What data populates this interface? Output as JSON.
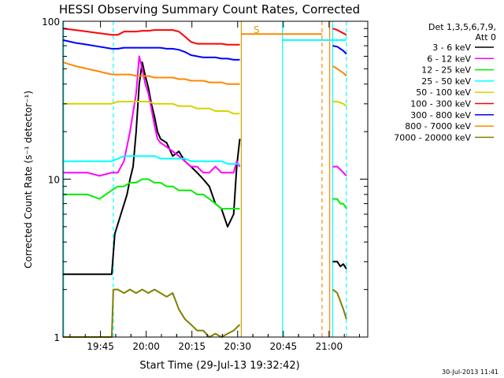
{
  "chart_data": {
    "type": "line",
    "title": "HESSI Observing Summary Count Rates, Corrected",
    "xlabel": "Start Time (29-Jul-13 19:32:42)",
    "ylabel": "Corrected Count Rate (s⁻¹ detector⁻¹)",
    "ylog": true,
    "ylim": [
      1,
      100
    ],
    "xlim_minutes": [
      0,
      100
    ],
    "x_ticks": [
      {
        "minute": 12.3,
        "label": "19:45"
      },
      {
        "minute": 27.3,
        "label": "20:00"
      },
      {
        "minute": 42.3,
        "label": "20:15"
      },
      {
        "minute": 57.3,
        "label": "20:30"
      },
      {
        "minute": 72.3,
        "label": "20:45"
      },
      {
        "minute": 87.3,
        "label": "21:00"
      }
    ],
    "y_ticks": [
      {
        "value": 1,
        "label": "1"
      },
      {
        "value": 10,
        "label": "10"
      },
      {
        "value": 100,
        "label": "100"
      }
    ],
    "legend": {
      "placement": "top-right",
      "header": [
        "Det 1,3,5,6,7,9,",
        "Att 0"
      ],
      "entries": [
        {
          "label": "3 - 6 keV",
          "color": "#000000"
        },
        {
          "label": "6 - 12 keV",
          "color": "#ff00ff"
        },
        {
          "label": "12 - 25 keV",
          "color": "#00ee00"
        },
        {
          "label": "25 - 50 keV",
          "color": "#00ffff"
        },
        {
          "label": "50 - 100 keV",
          "color": "#d4d400"
        },
        {
          "label": "100 - 300 keV",
          "color": "#ff0000"
        },
        {
          "label": "300 - 800 keV",
          "color": "#0000ff"
        },
        {
          "label": "800 - 7000 keV",
          "color": "#ff8800"
        },
        {
          "label": "7000 - 20000 keV",
          "color": "#808000"
        }
      ]
    },
    "annotation": "S",
    "vlines": [
      {
        "minute": 0.2,
        "color": "#00ffff",
        "style": "solid"
      },
      {
        "minute": 16.5,
        "color": "#00ffff",
        "style": "dashed"
      },
      {
        "minute": 58.5,
        "color": "#d4a000",
        "style": "solid"
      },
      {
        "minute": 72.0,
        "color": "#00ffff",
        "style": "solid"
      },
      {
        "minute": 85.0,
        "color": "#ff8800",
        "style": "dashed"
      },
      {
        "minute": 87.5,
        "color": "#ff8800",
        "style": "solid"
      },
      {
        "minute": 88.5,
        "color": "#00ffff",
        "style": "solid"
      },
      {
        "minute": 93.0,
        "color": "#00ffff",
        "style": "dashed"
      }
    ],
    "series": [
      {
        "name": "3 - 6 keV",
        "color": "#000000",
        "segments": [
          {
            "x": [
              0,
              16,
              17,
              21,
              22,
              23,
              24,
              25,
              26,
              27,
              28,
              29,
              30,
              31,
              32,
              34,
              36,
              38,
              40,
              42,
              44,
              46,
              48,
              50,
              52,
              54,
              56,
              57,
              58
            ],
            "y": [
              2.5,
              2.5,
              4.5,
              8,
              10,
              12,
              20,
              40,
              55,
              45,
              38,
              30,
              25,
              20,
              18,
              17,
              14,
              15,
              13,
              12,
              11,
              10,
              9,
              7,
              6.5,
              5,
              6,
              12,
              18
            ]
          },
          {
            "x": [
              88.5,
              90,
              91,
              92,
              93
            ],
            "y": [
              3.0,
              3.0,
              2.8,
              2.9,
              2.7
            ]
          }
        ]
      },
      {
        "name": "6 - 12 keV",
        "color": "#ff00ff",
        "segments": [
          {
            "x": [
              0,
              4,
              8,
              12,
              16,
              18,
              20,
              22,
              24,
              25,
              26,
              27,
              28,
              29,
              30,
              31,
              32,
              34,
              36,
              38,
              40,
              42,
              44,
              46,
              48,
              50,
              52,
              54,
              56,
              57,
              58
            ],
            "y": [
              11,
              11,
              11,
              10.5,
              11,
              11,
              13,
              20,
              35,
              60,
              50,
              40,
              35,
              28,
              22,
              18,
              17,
              16,
              15,
              14,
              13,
              12,
              12,
              11,
              11,
              12,
              11,
              11,
              11,
              13,
              12
            ]
          },
          {
            "x": [
              88.5,
              90,
              91,
              92,
              93
            ],
            "y": [
              12,
              12,
              11.5,
              11,
              10.5
            ]
          }
        ]
      },
      {
        "name": "12 - 25 keV",
        "color": "#00ee00",
        "segments": [
          {
            "x": [
              0,
              4,
              8,
              12,
              16,
              18,
              20,
              22,
              24,
              26,
              28,
              30,
              32,
              34,
              36,
              38,
              40,
              42,
              44,
              46,
              48,
              50,
              52,
              54,
              56,
              58
            ],
            "y": [
              8,
              8,
              8,
              7.5,
              8.5,
              9,
              9,
              9.5,
              9.5,
              10,
              10,
              9.5,
              9.5,
              9,
              9,
              8.5,
              8.5,
              8.5,
              8,
              8,
              7.5,
              7,
              6.5,
              6.5,
              6.5,
              6.5
            ]
          },
          {
            "x": [
              88.5,
              90,
              91,
              92,
              93
            ],
            "y": [
              7.5,
              7.5,
              7,
              7,
              6.5
            ]
          }
        ]
      },
      {
        "name": "25 - 50 keV",
        "color": "#00ffff",
        "segments": [
          {
            "x": [
              0,
              4,
              8,
              12,
              16,
              18,
              20,
              22,
              24,
              26,
              28,
              30,
              32,
              34,
              36,
              38,
              40,
              42,
              44,
              46,
              48,
              50,
              52,
              54,
              56,
              58
            ],
            "y": [
              13,
              13,
              13,
              13,
              13,
              13.5,
              14,
              14,
              14,
              14,
              14,
              14,
              13.5,
              13.5,
              13.5,
              13.5,
              13.5,
              13,
              13,
              13,
              13,
              13,
              13,
              12.5,
              12.5,
              12.5
            ]
          },
          {
            "x": [
              72,
              80,
              85,
              88.5,
              90,
              92,
              93
            ],
            "y": [
              76,
              76,
              76,
              76,
              76,
              76,
              76
            ]
          }
        ]
      },
      {
        "name": "50 - 100 keV",
        "color": "#d4d400",
        "segments": [
          {
            "x": [
              0,
              4,
              8,
              12,
              16,
              18,
              20,
              22,
              24,
              26,
              28,
              30,
              32,
              34,
              36,
              38,
              40,
              42,
              44,
              46,
              48,
              50,
              52,
              54,
              56,
              58
            ],
            "y": [
              30,
              30,
              30,
              30,
              30,
              31,
              31,
              31,
              31,
              31,
              31,
              30,
              30,
              30,
              30,
              29,
              29,
              29,
              28,
              28,
              28,
              27,
              27,
              27,
              26,
              26
            ]
          },
          {
            "x": [
              88.5,
              90,
              92,
              93
            ],
            "y": [
              31,
              31,
              30,
              29
            ]
          }
        ]
      },
      {
        "name": "100 - 300 keV",
        "color": "#ff0000",
        "segments": [
          {
            "x": [
              0,
              4,
              8,
              12,
              16,
              18,
              20,
              22,
              24,
              26,
              28,
              30,
              32,
              34,
              36,
              38,
              40,
              42,
              44,
              46,
              48,
              50,
              52,
              54,
              56,
              58
            ],
            "y": [
              90,
              88,
              86,
              84,
              82,
              82,
              86,
              86,
              86,
              87,
              87,
              88,
              88,
              88,
              88,
              86,
              80,
              74,
              72,
              72,
              72,
              72,
              72,
              71,
              71,
              71
            ]
          },
          {
            "x": [
              88.5,
              90,
              92,
              93
            ],
            "y": [
              90,
              88,
              84,
              82
            ]
          }
        ]
      },
      {
        "name": "300 - 800 keV",
        "color": "#0000ff",
        "segments": [
          {
            "x": [
              0,
              4,
              8,
              12,
              16,
              18,
              20,
              22,
              24,
              26,
              28,
              30,
              32,
              34,
              36,
              38,
              40,
              42,
              44,
              46,
              48,
              50,
              52,
              54,
              56,
              58
            ],
            "y": [
              76,
              73,
              71,
              69,
              67,
              67,
              68,
              68,
              68,
              68,
              68,
              68,
              68,
              67,
              67,
              66,
              64,
              61,
              60,
              59,
              59,
              59,
              58,
              58,
              57,
              57
            ]
          },
          {
            "x": [
              88.5,
              90,
              92,
              93
            ],
            "y": [
              70,
              69,
              65,
              62
            ]
          }
        ]
      },
      {
        "name": "800 - 7000 keV",
        "color": "#ff8800",
        "segments": [
          {
            "x": [
              0,
              4,
              8,
              12,
              16,
              18,
              20,
              22,
              24,
              26,
              28,
              30,
              32,
              34,
              36,
              38,
              40,
              42,
              44,
              46,
              48,
              50,
              52,
              54,
              56,
              58
            ],
            "y": [
              55,
              52,
              50,
              48,
              46,
              46,
              46,
              46,
              45,
              45,
              45,
              44,
              44,
              44,
              44,
              43,
              43,
              42,
              42,
              42,
              41,
              41,
              41,
              40,
              40,
              40
            ]
          },
          {
            "x": [
              58.5,
              63,
              70,
              78,
              85
            ],
            "y": [
              83,
              83,
              83,
              83,
              83
            ]
          },
          {
            "x": [
              88.5,
              90,
              92,
              93
            ],
            "y": [
              52,
              50,
              47,
              45
            ]
          }
        ]
      },
      {
        "name": "7000 - 20000 keV",
        "color": "#808000",
        "segments": [
          {
            "x": [
              0,
              16,
              16.5,
              18,
              20,
              22,
              24,
              26,
              28,
              30,
              32,
              34,
              36,
              38,
              40,
              42,
              44,
              46,
              48,
              50,
              52,
              54,
              56,
              58
            ],
            "y": [
              1,
              1,
              2,
              2,
              1.9,
              2,
              1.9,
              2,
              1.9,
              2,
              1.9,
              1.8,
              1.9,
              1.5,
              1.3,
              1.2,
              1.1,
              1.1,
              1,
              1.05,
              1,
              1.05,
              1.1,
              1.2
            ]
          },
          {
            "x": [
              88.5,
              90,
              92,
              93
            ],
            "y": [
              2,
              1.9,
              1.5,
              1.3
            ]
          }
        ]
      }
    ]
  },
  "footer": {
    "timestamp": "30-Jul-2013 11:41"
  }
}
